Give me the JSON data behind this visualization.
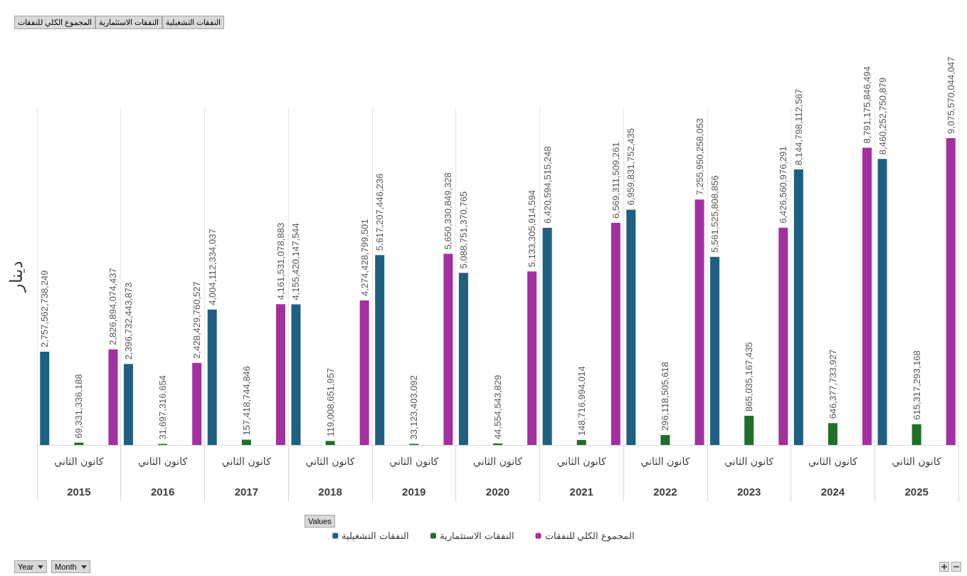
{
  "chart_data": {
    "type": "bar",
    "ylabel": "دينار",
    "categories": [
      "2015",
      "2016",
      "2017",
      "2018",
      "2019",
      "2020",
      "2021",
      "2022",
      "2023",
      "2024",
      "2025"
    ],
    "series": [
      {
        "name": "النفقات التشغيلية",
        "color": "#1f5f82",
        "values": [
          2757562738249,
          2396732443873,
          4004112334037,
          4155420147544,
          5617207446236,
          5088751370765,
          6420594515248,
          6959831752435,
          5561525808856,
          8144798112567,
          8460252750879
        ],
        "value_labels": [
          "2,757,562,738,249",
          "2,396,732,443,873",
          "4,004,112,334,037",
          "4,155,420,147,544",
          "5,617,207,446,236",
          "5,088,751,370,765",
          "6,420,594,515,248",
          "6,959,831,752,435",
          "5,561,525,808,856",
          "8,144,798,112,567",
          "8,460,252,750,879"
        ]
      },
      {
        "name": "النفقات الاستثمارية",
        "color": "#1e7028",
        "values": [
          69331336188,
          31697316654,
          157418744846,
          119008651957,
          33123403092,
          44554543829,
          148716994014,
          296118505618,
          865035167435,
          646377733927,
          615317293168
        ],
        "value_labels": [
          "69,331,336,188",
          "31,697,316,654",
          "157,418,744,846",
          "119,008,651,957",
          "33,123,403,092",
          "44,554,543,829",
          "148,716,994,014",
          "296,118,505,618",
          "865,035,167,435",
          "646,377,733,927",
          "615,317,293,168"
        ]
      },
      {
        "name": "المجموع الكلي للنفقات",
        "color": "#a3309f",
        "values": [
          2826894074437,
          2428429760527,
          4161531078883,
          4274428799501,
          5650330849328,
          5133305914594,
          6569311509261,
          7255950258053,
          6426560976291,
          8791175846494,
          9075570044047
        ],
        "value_labels": [
          "2,826,894,074,437",
          "2,428,429,760,527",
          "4,161,531,078,883",
          "4,274,428,799,501",
          "5,650,330,849,328",
          "5,133,305,914,594",
          "6,569,311,509,261",
          "7,255,950,258,053",
          "6,426,560,976,291",
          "8,791,175,846,494",
          "9,075,570,044,047"
        ]
      }
    ],
    "grid": "x",
    "legend": "bottom",
    "annotations": [
      "Values",
      "Year",
      "Month",
      "كانون الثاني",
      "كانون الثاني",
      "كانون الثاني",
      "كانون الثاني",
      "كانون الثاني",
      "كانون الثاني",
      "كانون الثاني",
      "كانون الثاني",
      "كانون الثاني",
      "كانون الثاني",
      "كانون الثاني"
    ]
  }
}
